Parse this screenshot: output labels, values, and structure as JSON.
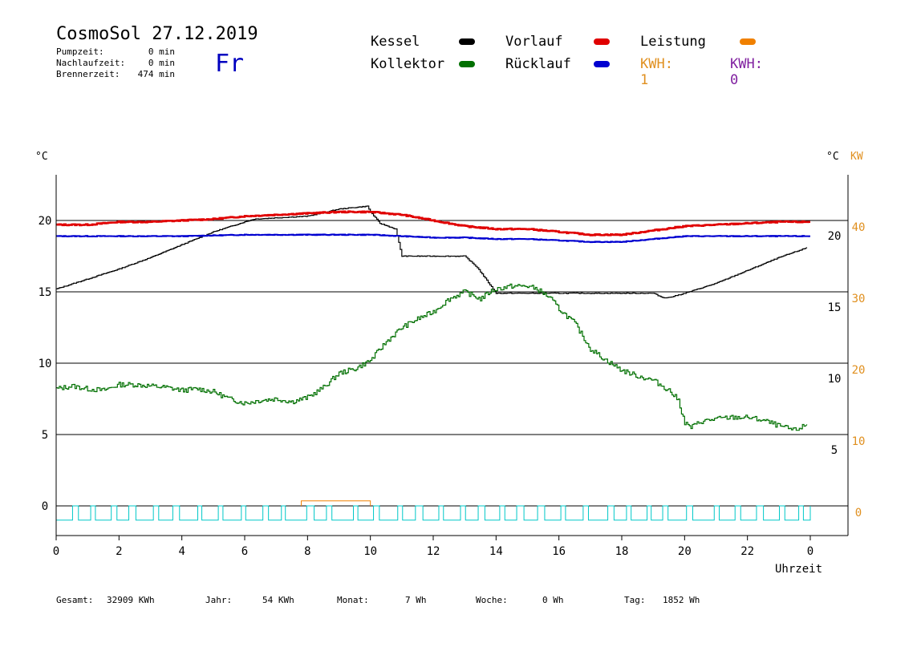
{
  "header": {
    "title": "CosmoSol 27.12.2019",
    "weekday": "Fr",
    "stats": [
      {
        "label": "Pumpzeit:",
        "value": "0 min"
      },
      {
        "label": "Nachlaufzeit:",
        "value": "0 min"
      },
      {
        "label": "Brennerzeit:",
        "value": "474 min"
      }
    ]
  },
  "legend": {
    "kessel": "Kessel",
    "vorlauf": "Vorlauf",
    "leistung": "Leistung",
    "kollektor": "Kollektor",
    "ruecklauf": "Rücklauf",
    "kwh_orange": "KWH: 1",
    "kwh_purple": "KWH: 0"
  },
  "colors": {
    "kessel": "#000000",
    "vorlauf": "#e00000",
    "leistung": "#f08000",
    "kollektor": "#007000",
    "ruecklauf": "#0000d0",
    "kwh_orange": "#e09020",
    "kwh_purple": "#8020a0",
    "pump": "#00c8c8",
    "weekday": "#0000c0"
  },
  "axes": {
    "left_unit": "°C",
    "right_unit": "°C",
    "right_unit_kw": "KW",
    "x_title": "Uhrzeit"
  },
  "footer": [
    {
      "label": "Gesamt:",
      "value": "32909 KWh"
    },
    {
      "label": "Jahr:",
      "value": "54 KWh"
    },
    {
      "label": "Monat:",
      "value": "7 Wh"
    },
    {
      "label": "Woche:",
      "value": "0 Wh"
    },
    {
      "label": "Tag:",
      "value": "1852 Wh"
    }
  ],
  "chart_data": {
    "type": "line",
    "x_ticks": [
      "0",
      "2",
      "4",
      "6",
      "8",
      "10",
      "12",
      "14",
      "16",
      "18",
      "20",
      "22",
      "0"
    ],
    "xlim": [
      0,
      24
    ],
    "y_left_ticks": [
      "0",
      "5",
      "10",
      "15",
      "20"
    ],
    "y_left_lim": [
      -2,
      23.7
    ],
    "y_right_ticks": [
      "5",
      "10",
      "15",
      "20"
    ],
    "y_right_kw_ticks": [
      "0",
      "10",
      "20",
      "30",
      "40"
    ],
    "grid_y": [
      0,
      5,
      10,
      15,
      20
    ],
    "series": [
      {
        "name": "Kessel",
        "key": "kessel",
        "x": [
          0,
          1,
          2,
          3,
          4,
          5,
          6,
          6.3,
          8,
          9,
          9.9,
          10,
          10.3,
          10.8,
          11,
          12,
          13,
          13.4,
          13.7,
          14,
          15,
          16,
          17,
          18,
          19,
          19.3,
          19.5,
          20,
          21,
          22,
          23,
          23.9
        ],
        "y": [
          15.2,
          15.9,
          16.6,
          17.4,
          18.3,
          19.2,
          19.9,
          20.1,
          20.3,
          20.8,
          21,
          20.6,
          19.8,
          19.4,
          17.5,
          17.5,
          17.5,
          16.7,
          15.8,
          14.9,
          14.9,
          14.9,
          14.9,
          14.9,
          14.9,
          14.6,
          14.6,
          14.9,
          15.6,
          16.5,
          17.4,
          18.1
        ]
      },
      {
        "name": "Vorlauf",
        "key": "vorlauf",
        "x": [
          0,
          1,
          2,
          3,
          4,
          5,
          6,
          7,
          8,
          9,
          10,
          11,
          12,
          13,
          14,
          15,
          16,
          17,
          18,
          19,
          20,
          21,
          22,
          23,
          24
        ],
        "y": [
          19.7,
          19.7,
          19.9,
          19.9,
          20,
          20.1,
          20.3,
          20.4,
          20.5,
          20.6,
          20.6,
          20.4,
          20,
          19.6,
          19.4,
          19.4,
          19.2,
          19,
          19,
          19.3,
          19.6,
          19.7,
          19.8,
          19.9,
          19.9
        ]
      },
      {
        "name": "Rücklauf",
        "key": "ruecklauf",
        "x": [
          0,
          2,
          4,
          6,
          8,
          10,
          11,
          12,
          13,
          14,
          15,
          16,
          17,
          18,
          19,
          20,
          21,
          22,
          23,
          24
        ],
        "y": [
          18.9,
          18.9,
          18.9,
          19,
          19,
          19,
          18.9,
          18.8,
          18.8,
          18.7,
          18.7,
          18.6,
          18.5,
          18.5,
          18.7,
          18.9,
          18.9,
          18.9,
          18.9,
          18.9
        ]
      },
      {
        "name": "Kollektor",
        "key": "kollektor",
        "x": [
          0,
          0.5,
          1,
          1.5,
          2,
          2.5,
          3,
          3.5,
          4,
          4.5,
          5,
          5.5,
          6,
          6.5,
          7,
          7.5,
          8,
          8.5,
          9,
          9.5,
          10,
          10.5,
          11,
          11.5,
          12,
          12.5,
          13,
          13.3,
          13.5,
          13.8,
          14,
          14.5,
          15,
          15.3,
          15.7,
          16,
          16.5,
          17,
          17.5,
          18,
          18.5,
          19,
          19.5,
          19.8,
          20,
          20.2,
          20.5,
          21,
          21.5,
          22,
          22.5,
          23,
          23.5,
          23.9
        ],
        "y": [
          8.2,
          8.4,
          8.2,
          8.1,
          8.5,
          8.5,
          8.4,
          8.3,
          8.1,
          8.2,
          8,
          7.5,
          7.2,
          7.4,
          7.5,
          7.3,
          7.6,
          8.3,
          9.3,
          9.6,
          10.2,
          11.5,
          12.5,
          13.1,
          13.6,
          14.5,
          15,
          14.7,
          14.5,
          15,
          15.2,
          15.4,
          15.4,
          15.2,
          14.6,
          13.8,
          12.8,
          11,
          10.2,
          9.5,
          9.1,
          8.8,
          8.1,
          7.4,
          5.8,
          5.5,
          5.9,
          6.1,
          6.2,
          6.2,
          6,
          5.6,
          5.3,
          5.7
        ]
      }
    ],
    "pump_cycles": {
      "level": 0,
      "amplitude": 1.0
    },
    "leistung_bars": [
      {
        "start": 7.8,
        "end": 10,
        "value": 0.35
      }
    ]
  }
}
